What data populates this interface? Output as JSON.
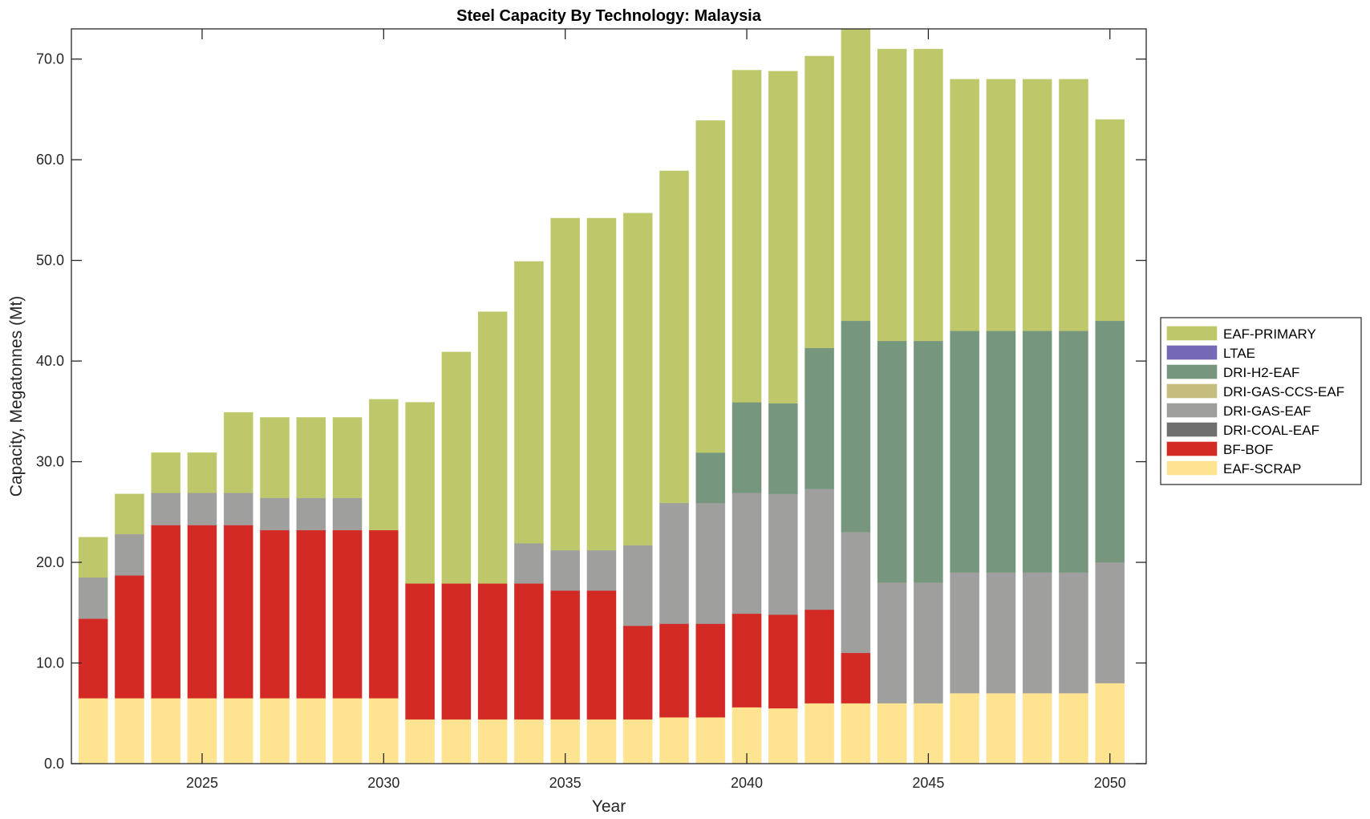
{
  "chart_data": {
    "type": "bar",
    "stacked": true,
    "title": "Steel Capacity By Technology: Malaysia",
    "xlabel": "Year",
    "ylabel": "Capacity, Megatonnes (Mt)",
    "ylim": [
      0,
      73
    ],
    "xlim": [
      2021.4,
      2051.0
    ],
    "yticks": [
      0,
      10,
      20,
      30,
      40,
      50,
      60,
      70
    ],
    "ytick_labels": [
      "0.0",
      "10.0",
      "20.0",
      "30.0",
      "40.0",
      "50.0",
      "60.0",
      "70.0"
    ],
    "xticks": [
      2025,
      2030,
      2035,
      2040,
      2045,
      2050
    ],
    "xtick_labels": [
      "2025",
      "2030",
      "2035",
      "2040",
      "2045",
      "2050"
    ],
    "grid": false,
    "legend_position": "right",
    "categories": [
      2022,
      2023,
      2024,
      2025,
      2026,
      2027,
      2028,
      2029,
      2030,
      2031,
      2032,
      2033,
      2034,
      2035,
      2036,
      2037,
      2038,
      2039,
      2040,
      2041,
      2042,
      2043,
      2044,
      2045,
      2046,
      2047,
      2048,
      2049,
      2050
    ],
    "series": [
      {
        "name": "EAF-SCRAP",
        "color": "#fee391",
        "values": [
          6.5,
          6.5,
          6.5,
          6.5,
          6.5,
          6.5,
          6.5,
          6.5,
          6.5,
          4.4,
          4.4,
          4.4,
          4.4,
          4.4,
          4.4,
          4.4,
          4.6,
          4.6,
          5.6,
          5.5,
          6.0,
          6.0,
          6.0,
          6.0,
          7.0,
          7.0,
          7.0,
          7.0,
          8.0
        ]
      },
      {
        "name": "BF-BOF",
        "color": "#d32a25",
        "values": [
          7.9,
          12.2,
          17.2,
          17.2,
          17.2,
          16.7,
          16.7,
          16.7,
          16.7,
          13.5,
          13.5,
          13.5,
          13.5,
          12.8,
          12.8,
          9.3,
          9.3,
          9.3,
          9.3,
          9.3,
          9.3,
          5.0,
          0,
          0,
          0,
          0,
          0,
          0,
          0
        ]
      },
      {
        "name": "DRI-COAL-EAF",
        "color": "#6e6e6e",
        "values": [
          0,
          0,
          0,
          0,
          0,
          0,
          0,
          0,
          0,
          0,
          0,
          0,
          0,
          0,
          0,
          0,
          0,
          0,
          0,
          0,
          0,
          0,
          0,
          0,
          0,
          0,
          0,
          0,
          0
        ]
      },
      {
        "name": "DRI-GAS-EAF",
        "color": "#9f9f9d",
        "values": [
          4.1,
          4.1,
          3.2,
          3.2,
          3.2,
          3.2,
          3.2,
          3.2,
          0,
          0,
          0,
          0,
          4.0,
          4.0,
          4.0,
          8.0,
          12.0,
          12.0,
          12.0,
          12.0,
          12.0,
          12.0,
          12.0,
          12.0,
          12.0,
          12.0,
          12.0,
          12.0,
          12.0
        ]
      },
      {
        "name": "DRI-GAS-CCS-EAF",
        "color": "#c4bd7e",
        "values": [
          0,
          0,
          0,
          0,
          0,
          0,
          0,
          0,
          0,
          0,
          0,
          0,
          0,
          0,
          0,
          0,
          0,
          0,
          0,
          0,
          0,
          0,
          0,
          0,
          0,
          0,
          0,
          0,
          0
        ]
      },
      {
        "name": "DRI-H2-EAF",
        "color": "#76977d",
        "values": [
          0,
          0,
          0,
          0,
          0,
          0,
          0,
          0,
          0,
          0,
          0,
          0,
          0,
          0,
          0,
          0,
          0,
          5.0,
          9.0,
          9.0,
          14.0,
          21.0,
          24.0,
          24.0,
          24.0,
          24.0,
          24.0,
          24.0,
          24.0
        ]
      },
      {
        "name": "LTAE",
        "color": "#7568b7",
        "values": [
          0,
          0,
          0,
          0,
          0,
          0,
          0,
          0,
          0,
          0,
          0,
          0,
          0,
          0,
          0,
          0,
          0,
          0,
          0,
          0,
          0,
          0,
          0,
          0,
          0,
          0,
          0,
          0,
          0
        ]
      },
      {
        "name": "EAF-PRIMARY",
        "color": "#bec86b",
        "values": [
          4.0,
          4.0,
          4.0,
          4.0,
          8.0,
          8.0,
          8.0,
          8.0,
          13.0,
          18.0,
          23.0,
          27.0,
          28.0,
          33.0,
          33.0,
          33.0,
          33.0,
          33.0,
          33.0,
          33.0,
          29.0,
          29.0,
          29.0,
          29.0,
          25.0,
          25.0,
          25.0,
          25.0,
          20.0
        ]
      }
    ],
    "legend_order": [
      "EAF-PRIMARY",
      "LTAE",
      "DRI-H2-EAF",
      "DRI-GAS-CCS-EAF",
      "DRI-GAS-EAF",
      "DRI-COAL-EAF",
      "BF-BOF",
      "EAF-SCRAP"
    ]
  }
}
